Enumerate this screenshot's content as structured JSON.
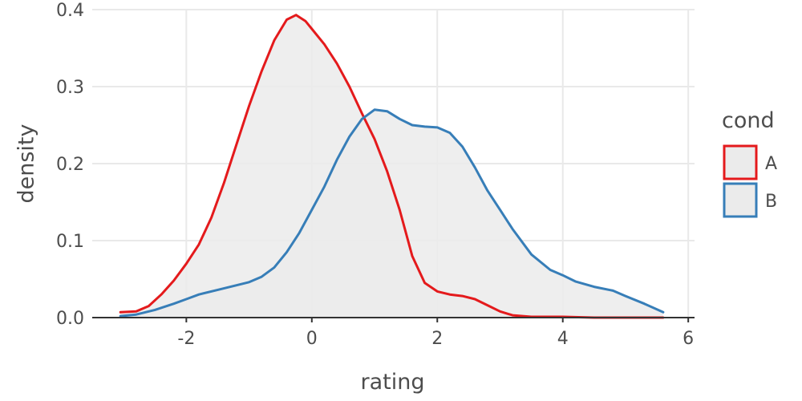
{
  "chart_data": {
    "type": "area",
    "chart_kind": "density",
    "xlabel": "rating",
    "ylabel": "density",
    "xlim": [
      -3.5,
      6.1
    ],
    "ylim": [
      0,
      0.4
    ],
    "x_ticks": [
      -2,
      0,
      2,
      4,
      6
    ],
    "y_ticks": [
      0.0,
      0.1,
      0.2,
      0.3,
      0.4
    ],
    "x_tick_labels": [
      "-2",
      "0",
      "2",
      "4",
      "6"
    ],
    "y_tick_labels": [
      "0.0",
      "0.1",
      "0.2",
      "0.3",
      "0.4"
    ],
    "grid": true,
    "legend": {
      "title": "cond",
      "placement": "right",
      "entries": [
        "A",
        "B"
      ]
    },
    "series": [
      {
        "name": "A",
        "color": "#e41a1c",
        "fill": "#ebebeb",
        "x": [
          -3.05,
          -2.8,
          -2.6,
          -2.4,
          -2.2,
          -2.0,
          -1.8,
          -1.6,
          -1.4,
          -1.2,
          -1.0,
          -0.8,
          -0.6,
          -0.4,
          -0.25,
          -0.1,
          0.0,
          0.2,
          0.4,
          0.6,
          0.8,
          1.0,
          1.2,
          1.4,
          1.6,
          1.8,
          2.0,
          2.2,
          2.4,
          2.6,
          2.8,
          3.0,
          3.2,
          3.5,
          4.0,
          4.5,
          5.0,
          5.6
        ],
        "y": [
          0.007,
          0.008,
          0.015,
          0.03,
          0.048,
          0.07,
          0.095,
          0.13,
          0.175,
          0.225,
          0.275,
          0.32,
          0.36,
          0.387,
          0.393,
          0.385,
          0.375,
          0.355,
          0.33,
          0.3,
          0.265,
          0.232,
          0.19,
          0.14,
          0.08,
          0.045,
          0.034,
          0.03,
          0.028,
          0.024,
          0.016,
          0.008,
          0.003,
          0.001,
          0.001,
          0.0,
          0.0,
          0.0
        ]
      },
      {
        "name": "B",
        "color": "#377eb8",
        "fill": "#ebebeb",
        "x": [
          -3.05,
          -2.8,
          -2.5,
          -2.2,
          -2.0,
          -1.8,
          -1.5,
          -1.2,
          -1.0,
          -0.8,
          -0.6,
          -0.4,
          -0.2,
          0.0,
          0.2,
          0.4,
          0.6,
          0.8,
          1.0,
          1.2,
          1.4,
          1.6,
          1.8,
          2.0,
          2.2,
          2.4,
          2.6,
          2.8,
          3.0,
          3.2,
          3.5,
          3.8,
          4.0,
          4.2,
          4.5,
          4.8,
          5.0,
          5.3,
          5.6
        ],
        "y": [
          0.002,
          0.004,
          0.01,
          0.018,
          0.024,
          0.03,
          0.036,
          0.042,
          0.046,
          0.053,
          0.065,
          0.085,
          0.11,
          0.14,
          0.17,
          0.205,
          0.235,
          0.258,
          0.27,
          0.268,
          0.258,
          0.25,
          0.248,
          0.247,
          0.24,
          0.222,
          0.195,
          0.165,
          0.14,
          0.115,
          0.082,
          0.062,
          0.055,
          0.047,
          0.04,
          0.035,
          0.028,
          0.018,
          0.007
        ]
      }
    ]
  }
}
